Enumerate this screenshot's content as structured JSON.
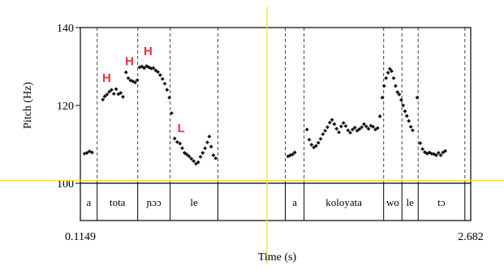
{
  "chart_data": {
    "type": "scatter",
    "title": "",
    "xlabel": "Time (s)",
    "ylabel": "Pitch (Hz)",
    "xlim": [
      0.1149,
      2.682
    ],
    "ylim": [
      100,
      140
    ],
    "x_tick_labels": [
      "0.1149",
      "2.682"
    ],
    "y_ticks": [
      {
        "value": 100,
        "label": "100"
      },
      {
        "value": 120,
        "label": "120"
      },
      {
        "value": 140,
        "label": "140"
      }
    ],
    "cursor_time": 1.342,
    "cursor_pitch": 100.7,
    "segment_boundaries": [
      0.2255,
      0.4922,
      0.7056,
      1.0196,
      1.4626,
      1.5862,
      2.1093,
      2.2295,
      2.3362,
      2.6435
    ],
    "segments": [
      {
        "label": "a",
        "start": 0.1149,
        "end": 0.2255
      },
      {
        "label": "tota",
        "start": 0.2255,
        "end": 0.4922
      },
      {
        "label": "ɲɔɔ",
        "start": 0.4922,
        "end": 0.7056
      },
      {
        "label": "le",
        "start": 0.7056,
        "end": 1.0196
      },
      {
        "label": "",
        "start": 1.0196,
        "end": 1.4626
      },
      {
        "label": "a",
        "start": 1.4626,
        "end": 1.5862
      },
      {
        "label": "koloyata",
        "start": 1.5862,
        "end": 2.1093
      },
      {
        "label": "wo",
        "start": 2.1093,
        "end": 2.2295
      },
      {
        "label": "le",
        "start": 2.2295,
        "end": 2.3362
      },
      {
        "label": "tɔ",
        "start": 2.3362,
        "end": 2.6435
      },
      {
        "label": "",
        "start": 2.6435,
        "end": 2.682
      }
    ],
    "tone_labels": [
      {
        "label": "H",
        "time": 0.288,
        "pitch": 126,
        "color": "#e8323c"
      },
      {
        "label": "H",
        "time": 0.438,
        "pitch": 130.3,
        "color": "#e8323c"
      },
      {
        "label": "H",
        "time": 0.56,
        "pitch": 132.9,
        "color": "#e8323c"
      },
      {
        "label": "L",
        "time": 0.778,
        "pitch": 113.1,
        "color": "#e8323c"
      }
    ],
    "pitch_points": [
      [
        0.142,
        107.6
      ],
      [
        0.158,
        107.8
      ],
      [
        0.175,
        108.2
      ],
      [
        0.192,
        107.9
      ],
      [
        0.263,
        121.5
      ],
      [
        0.275,
        122.3
      ],
      [
        0.29,
        122.8
      ],
      [
        0.305,
        123.5
      ],
      [
        0.32,
        124.0
      ],
      [
        0.335,
        123.0
      ],
      [
        0.35,
        124.2
      ],
      [
        0.365,
        122.9
      ],
      [
        0.38,
        123.2
      ],
      [
        0.395,
        122.2
      ],
      [
        0.415,
        128.5
      ],
      [
        0.43,
        127.0
      ],
      [
        0.445,
        126.4
      ],
      [
        0.46,
        126.2
      ],
      [
        0.475,
        125.9
      ],
      [
        0.49,
        126.5
      ],
      [
        0.505,
        129.8
      ],
      [
        0.52,
        130.0
      ],
      [
        0.535,
        129.6
      ],
      [
        0.55,
        130.1
      ],
      [
        0.565,
        129.8
      ],
      [
        0.58,
        129.5
      ],
      [
        0.595,
        129.6
      ],
      [
        0.61,
        129.0
      ],
      [
        0.625,
        128.6
      ],
      [
        0.64,
        127.8
      ],
      [
        0.655,
        126.8
      ],
      [
        0.67,
        125.6
      ],
      [
        0.685,
        124.0
      ],
      [
        0.7,
        122.0
      ],
      [
        0.715,
        118.0
      ],
      [
        0.735,
        111.5
      ],
      [
        0.752,
        110.6
      ],
      [
        0.77,
        110.2
      ],
      [
        0.785,
        109.0
      ],
      [
        0.8,
        107.8
      ],
      [
        0.815,
        107.4
      ],
      [
        0.83,
        106.9
      ],
      [
        0.845,
        106.3
      ],
      [
        0.86,
        105.7
      ],
      [
        0.875,
        105.0
      ],
      [
        0.89,
        105.4
      ],
      [
        0.905,
        106.8
      ],
      [
        0.92,
        107.8
      ],
      [
        0.935,
        109.0
      ],
      [
        0.95,
        110.5
      ],
      [
        0.963,
        112.0
      ],
      [
        0.975,
        109.4
      ],
      [
        0.99,
        107.2
      ],
      [
        1.005,
        106.4
      ],
      [
        1.48,
        106.9
      ],
      [
        1.495,
        107.2
      ],
      [
        1.51,
        107.4
      ],
      [
        1.525,
        107.9
      ],
      [
        1.605,
        113.8
      ],
      [
        1.62,
        111.2
      ],
      [
        1.635,
        109.9
      ],
      [
        1.65,
        109.2
      ],
      [
        1.665,
        109.6
      ],
      [
        1.68,
        110.4
      ],
      [
        1.695,
        111.4
      ],
      [
        1.71,
        112.6
      ],
      [
        1.725,
        113.5
      ],
      [
        1.74,
        114.4
      ],
      [
        1.755,
        115.6
      ],
      [
        1.77,
        116.3
      ],
      [
        1.785,
        115.2
      ],
      [
        1.8,
        114.0
      ],
      [
        1.815,
        113.1
      ],
      [
        1.83,
        114.6
      ],
      [
        1.845,
        115.5
      ],
      [
        1.86,
        114.7
      ],
      [
        1.875,
        113.6
      ],
      [
        1.89,
        113.0
      ],
      [
        1.905,
        113.8
      ],
      [
        1.92,
        114.3
      ],
      [
        1.935,
        113.5
      ],
      [
        1.95,
        113.9
      ],
      [
        1.965,
        114.4
      ],
      [
        1.98,
        115.2
      ],
      [
        1.995,
        114.6
      ],
      [
        2.01,
        114.0
      ],
      [
        2.025,
        114.8
      ],
      [
        2.04,
        114.5
      ],
      [
        2.055,
        113.8
      ],
      [
        2.07,
        114.2
      ],
      [
        2.085,
        117.2
      ],
      [
        2.1,
        122.0
      ],
      [
        2.112,
        125.0
      ],
      [
        2.125,
        127.0
      ],
      [
        2.138,
        128.4
      ],
      [
        2.15,
        129.4
      ],
      [
        2.162,
        128.8
      ],
      [
        2.175,
        127.0
      ],
      [
        2.188,
        125.0
      ],
      [
        2.2,
        123.4
      ],
      [
        2.212,
        122.8
      ],
      [
        2.225,
        121.4
      ],
      [
        2.238,
        120.0
      ],
      [
        2.25,
        118.5
      ],
      [
        2.262,
        117.3
      ],
      [
        2.275,
        116.0
      ],
      [
        2.288,
        114.5
      ],
      [
        2.3,
        113.6
      ],
      [
        2.33,
        122.0
      ],
      [
        2.35,
        110.3
      ],
      [
        2.365,
        108.8
      ],
      [
        2.38,
        108.0
      ],
      [
        2.395,
        107.6
      ],
      [
        2.41,
        107.9
      ],
      [
        2.425,
        107.6
      ],
      [
        2.44,
        107.5
      ],
      [
        2.455,
        107.2
      ],
      [
        2.47,
        107.8
      ],
      [
        2.485,
        107.2
      ],
      [
        2.5,
        107.9
      ],
      [
        2.515,
        108.3
      ]
    ]
  }
}
